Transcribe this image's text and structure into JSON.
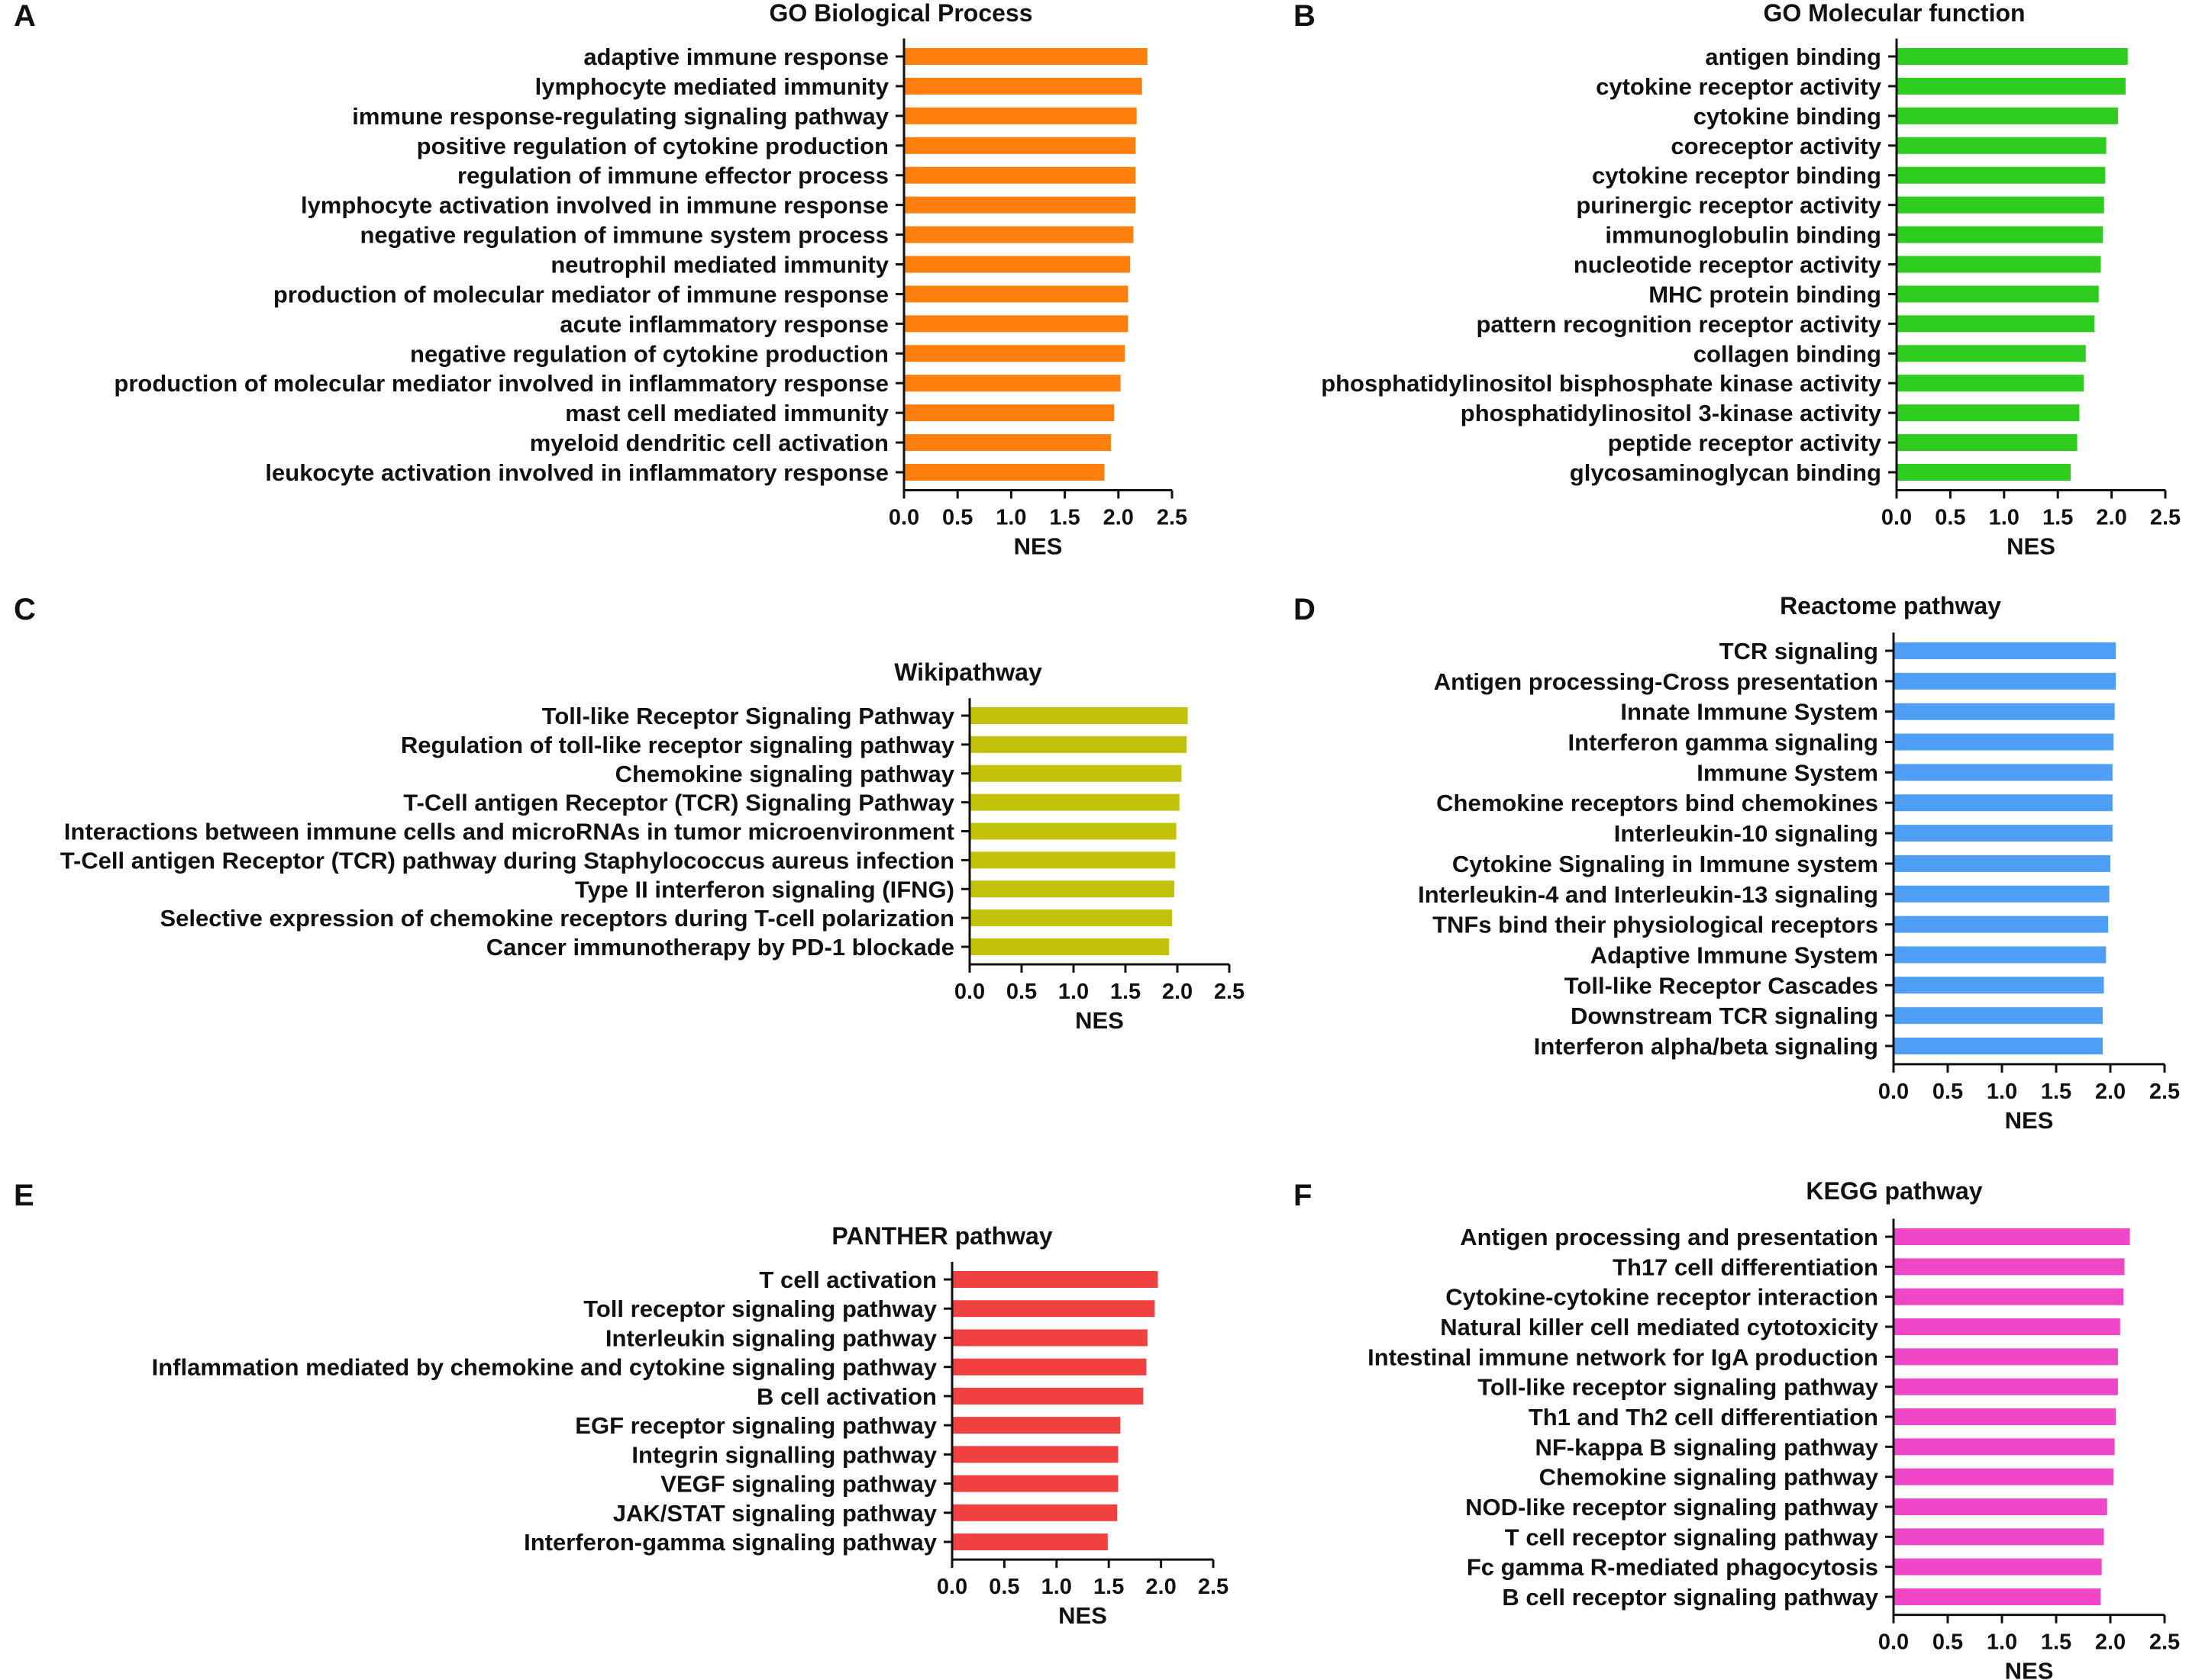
{
  "chart_data": [
    {
      "panel": "A",
      "type": "bar",
      "orientation": "horizontal",
      "title": "GO Biological Process",
      "xlabel": "NES",
      "ylabel": "",
      "xlim": [
        0,
        2.5
      ],
      "xticks": [
        "0.0",
        "0.5",
        "1.0",
        "1.5",
        "2.0",
        "2.5"
      ],
      "color": "#ff7f0e",
      "categories": [
        "adaptive immune response",
        "lymphocyte mediated immunity",
        "immune response-regulating signaling pathway",
        "positive regulation of cytokine production",
        "regulation of immune effector process",
        "lymphocyte activation involved in immune response",
        "negative regulation of immune system process",
        "neutrophil mediated immunity",
        "production of molecular mediator of immune response",
        "acute inflammatory response",
        "negative regulation of cytokine production",
        "production of molecular mediator involved in inflammatory response",
        "mast cell mediated immunity",
        "myeloid dendritic cell activation",
        "leukocyte activation involved in inflammatory response"
      ],
      "values": [
        2.27,
        2.22,
        2.17,
        2.16,
        2.16,
        2.16,
        2.14,
        2.11,
        2.09,
        2.09,
        2.06,
        2.02,
        1.96,
        1.93,
        1.87
      ]
    },
    {
      "panel": "B",
      "type": "bar",
      "orientation": "horizontal",
      "title": "GO Molecular function",
      "xlabel": "NES",
      "ylabel": "",
      "xlim": [
        0,
        2.5
      ],
      "xticks": [
        "0.0",
        "0.5",
        "1.0",
        "1.5",
        "2.0",
        "2.5"
      ],
      "color": "#2ecc1f",
      "categories": [
        "antigen binding",
        "cytokine receptor activity",
        "cytokine binding",
        "coreceptor activity",
        "cytokine receptor binding",
        "purinergic receptor activity",
        "immunoglobulin binding",
        "nucleotide receptor activity",
        "MHC protein binding",
        "pattern recognition receptor activity",
        "collagen binding",
        "phosphatidylinositol bisphosphate kinase activity",
        "phosphatidylinositol 3-kinase activity",
        "peptide receptor activity",
        "glycosaminoglycan binding"
      ],
      "values": [
        2.15,
        2.13,
        2.06,
        1.95,
        1.94,
        1.93,
        1.92,
        1.9,
        1.88,
        1.84,
        1.76,
        1.74,
        1.7,
        1.68,
        1.62
      ]
    },
    {
      "panel": "C",
      "type": "bar",
      "orientation": "horizontal",
      "title": "Wikipathway",
      "xlabel": "NES",
      "ylabel": "",
      "xlim": [
        0,
        2.5
      ],
      "xticks": [
        "0.0",
        "0.5",
        "1.0",
        "1.5",
        "2.0",
        "2.5"
      ],
      "color": "#c2c20a",
      "categories": [
        "Toll-like Receptor Signaling Pathway",
        "Regulation of toll-like receptor signaling pathway",
        "Chemokine signaling pathway",
        "T-Cell antigen Receptor (TCR) Signaling Pathway",
        "Interactions between immune cells and microRNAs in tumor microenvironment",
        "T-Cell antigen Receptor (TCR) pathway during Staphylococcus aureus infection",
        "Type II interferon signaling (IFNG)",
        "Selective expression of chemokine receptors during T-cell polarization",
        "Cancer immunotherapy by PD-1 blockade"
      ],
      "values": [
        2.1,
        2.09,
        2.04,
        2.02,
        1.99,
        1.98,
        1.97,
        1.95,
        1.92
      ]
    },
    {
      "panel": "D",
      "type": "bar",
      "orientation": "horizontal",
      "title": "Reactome pathway",
      "xlabel": "NES",
      "ylabel": "",
      "xlim": [
        0,
        2.5
      ],
      "xticks": [
        "0.0",
        "0.5",
        "1.0",
        "1.5",
        "2.0",
        "2.5"
      ],
      "color": "#4f9ef5",
      "categories": [
        "TCR signaling",
        "Antigen processing-Cross presentation",
        "Innate Immune System",
        "Interferon gamma signaling",
        "Immune System",
        "Chemokine receptors bind chemokines",
        "Interleukin-10 signaling",
        "Cytokine Signaling in Immune system",
        "Interleukin-4 and Interleukin-13 signaling",
        "TNFs bind their physiological receptors",
        "Adaptive Immune System",
        "Toll-like Receptor Cascades",
        "Downstream TCR signaling",
        "Interferon alpha/beta signaling"
      ],
      "values": [
        2.05,
        2.05,
        2.04,
        2.03,
        2.02,
        2.02,
        2.02,
        2.0,
        1.99,
        1.98,
        1.96,
        1.94,
        1.93,
        1.93
      ]
    },
    {
      "panel": "E",
      "type": "bar",
      "orientation": "horizontal",
      "title": "PANTHER pathway",
      "xlabel": "NES",
      "ylabel": "",
      "xlim": [
        0,
        2.5
      ],
      "xticks": [
        "0.0",
        "0.5",
        "1.0",
        "1.5",
        "2.0",
        "2.5"
      ],
      "color": "#f04040",
      "categories": [
        "T cell activation",
        "Toll receptor signaling pathway",
        "Interleukin signaling pathway",
        "Inflammation mediated by chemokine and cytokine signaling pathway",
        "B cell activation",
        "EGF receptor signaling pathway",
        "Integrin signalling pathway",
        "VEGF signaling pathway",
        "JAK/STAT signaling pathway",
        "Interferon-gamma signaling pathway"
      ],
      "values": [
        1.97,
        1.94,
        1.87,
        1.86,
        1.83,
        1.61,
        1.59,
        1.59,
        1.58,
        1.49
      ]
    },
    {
      "panel": "F",
      "type": "bar",
      "orientation": "horizontal",
      "title": "KEGG pathway",
      "xlabel": "NES",
      "ylabel": "",
      "xlim": [
        0,
        2.5
      ],
      "xticks": [
        "0.0",
        "0.5",
        "1.0",
        "1.5",
        "2.0",
        "2.5"
      ],
      "color": "#f046c8",
      "categories": [
        "Antigen processing and presentation",
        "Th17 cell differentiation",
        "Cytokine-cytokine receptor interaction",
        "Natural killer cell mediated cytotoxicity",
        "Intestinal immune network for IgA production",
        "Toll-like receptor signaling pathway",
        "Th1 and Th2 cell differentiation",
        "NF-kappa B signaling pathway",
        "Chemokine signaling pathway",
        "NOD-like receptor signaling pathway",
        "T cell receptor signaling pathway",
        "Fc gamma R-mediated phagocytosis",
        "B cell receptor signaling pathway"
      ],
      "values": [
        2.18,
        2.13,
        2.12,
        2.09,
        2.07,
        2.07,
        2.05,
        2.04,
        2.03,
        1.97,
        1.94,
        1.92,
        1.91
      ]
    }
  ]
}
